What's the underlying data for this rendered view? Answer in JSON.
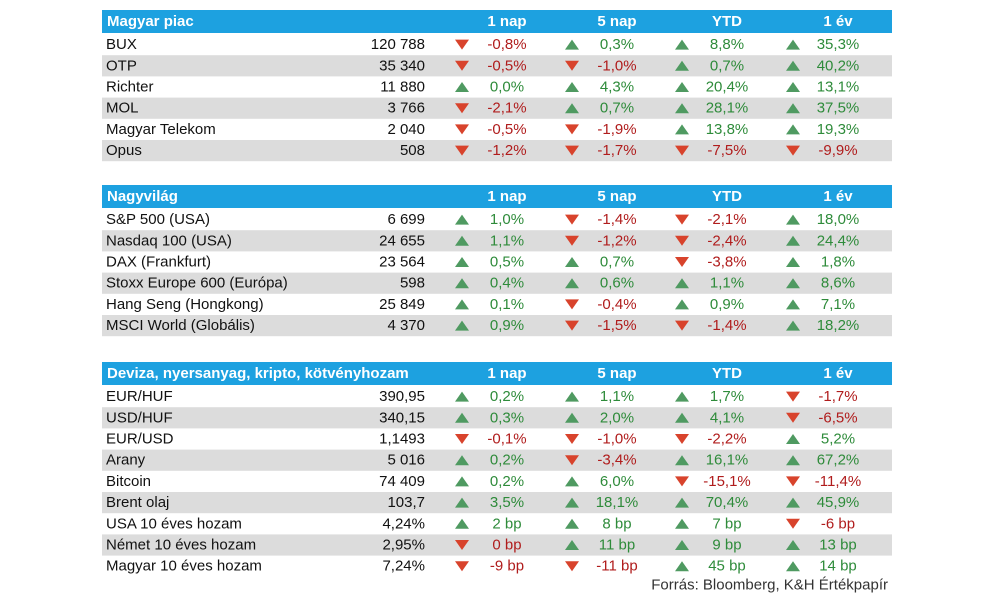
{
  "sections": [
    {
      "header": {
        "title": "Magyar piac",
        "columns": [
          "1 nap",
          "5 nap",
          "YTD",
          "1 év"
        ]
      },
      "rows": [
        {
          "name": "BUX",
          "value": "120 788",
          "cells": [
            {
              "text": "-0,8%",
              "trend": "down"
            },
            {
              "text": "0,3%",
              "trend": "up"
            },
            {
              "text": "8,8%",
              "trend": "up"
            },
            {
              "text": "35,3%",
              "trend": "up"
            }
          ]
        },
        {
          "name": "OTP",
          "value": "35 340",
          "cells": [
            {
              "text": "-0,5%",
              "trend": "down"
            },
            {
              "text": "-1,0%",
              "trend": "down"
            },
            {
              "text": "0,7%",
              "trend": "up"
            },
            {
              "text": "40,2%",
              "trend": "up"
            }
          ]
        },
        {
          "name": "Richter",
          "value": "11 880",
          "cells": [
            {
              "text": "0,0%",
              "trend": "up"
            },
            {
              "text": "4,3%",
              "trend": "up"
            },
            {
              "text": "20,4%",
              "trend": "up"
            },
            {
              "text": "13,1%",
              "trend": "up"
            }
          ]
        },
        {
          "name": "MOL",
          "value": "3 766",
          "cells": [
            {
              "text": "-2,1%",
              "trend": "down"
            },
            {
              "text": "0,7%",
              "trend": "up"
            },
            {
              "text": "28,1%",
              "trend": "up"
            },
            {
              "text": "37,5%",
              "trend": "up"
            }
          ]
        },
        {
          "name": "Magyar Telekom",
          "value": "2 040",
          "cells": [
            {
              "text": "-0,5%",
              "trend": "down"
            },
            {
              "text": "-1,9%",
              "trend": "down"
            },
            {
              "text": "13,8%",
              "trend": "up"
            },
            {
              "text": "19,3%",
              "trend": "up"
            }
          ]
        },
        {
          "name": "Opus",
          "value": "508",
          "cells": [
            {
              "text": "-1,2%",
              "trend": "down"
            },
            {
              "text": "-1,7%",
              "trend": "down"
            },
            {
              "text": "-7,5%",
              "trend": "down"
            },
            {
              "text": "-9,9%",
              "trend": "down"
            }
          ]
        }
      ]
    },
    {
      "header": {
        "title": "Nagyvilág",
        "columns": [
          "1 nap",
          "5 nap",
          "YTD",
          "1 év"
        ]
      },
      "rows": [
        {
          "name": "S&P 500 (USA)",
          "value": "6 699",
          "cells": [
            {
              "text": "1,0%",
              "trend": "up"
            },
            {
              "text": "-1,4%",
              "trend": "down"
            },
            {
              "text": "-2,1%",
              "trend": "down"
            },
            {
              "text": "18,0%",
              "trend": "up"
            }
          ]
        },
        {
          "name": "Nasdaq 100 (USA)",
          "value": "24 655",
          "cells": [
            {
              "text": "1,1%",
              "trend": "up"
            },
            {
              "text": "-1,2%",
              "trend": "down"
            },
            {
              "text": "-2,4%",
              "trend": "down"
            },
            {
              "text": "24,4%",
              "trend": "up"
            }
          ]
        },
        {
          "name": "DAX (Frankfurt)",
          "value": "23 564",
          "cells": [
            {
              "text": "0,5%",
              "trend": "up"
            },
            {
              "text": "0,7%",
              "trend": "up"
            },
            {
              "text": "-3,8%",
              "trend": "down"
            },
            {
              "text": "1,8%",
              "trend": "up"
            }
          ]
        },
        {
          "name": "Stoxx Europe 600 (Európa)",
          "value": "598",
          "cells": [
            {
              "text": "0,4%",
              "trend": "up"
            },
            {
              "text": "0,6%",
              "trend": "up"
            },
            {
              "text": "1,1%",
              "trend": "up"
            },
            {
              "text": "8,6%",
              "trend": "up"
            }
          ]
        },
        {
          "name": "Hang Seng (Hongkong)",
          "value": "25 849",
          "cells": [
            {
              "text": "0,1%",
              "trend": "up"
            },
            {
              "text": "-0,4%",
              "trend": "down"
            },
            {
              "text": "0,9%",
              "trend": "up"
            },
            {
              "text": "7,1%",
              "trend": "up"
            }
          ]
        },
        {
          "name": "MSCI World (Globális)",
          "value": "4 370",
          "cells": [
            {
              "text": "0,9%",
              "trend": "up"
            },
            {
              "text": "-1,5%",
              "trend": "down"
            },
            {
              "text": "-1,4%",
              "trend": "down"
            },
            {
              "text": "18,2%",
              "trend": "up"
            }
          ]
        }
      ]
    },
    {
      "header": {
        "title": "Deviza, nyersanyag, kripto, kötvényhozam",
        "columns": [
          "1 nap",
          "5 nap",
          "YTD",
          "1 év"
        ]
      },
      "rows": [
        {
          "name": "EUR/HUF",
          "value": "390,95",
          "cells": [
            {
              "text": "0,2%",
              "trend": "up"
            },
            {
              "text": "1,1%",
              "trend": "up"
            },
            {
              "text": "1,7%",
              "trend": "up"
            },
            {
              "text": "-1,7%",
              "trend": "down"
            }
          ]
        },
        {
          "name": "USD/HUF",
          "value": "340,15",
          "cells": [
            {
              "text": "0,3%",
              "trend": "up"
            },
            {
              "text": "2,0%",
              "trend": "up"
            },
            {
              "text": "4,1%",
              "trend": "up"
            },
            {
              "text": "-6,5%",
              "trend": "down"
            }
          ]
        },
        {
          "name": "EUR/USD",
          "value": "1,1493",
          "cells": [
            {
              "text": "-0,1%",
              "trend": "down"
            },
            {
              "text": "-1,0%",
              "trend": "down"
            },
            {
              "text": "-2,2%",
              "trend": "down"
            },
            {
              "text": "5,2%",
              "trend": "up"
            }
          ]
        },
        {
          "name": "Arany",
          "value": "5 016",
          "cells": [
            {
              "text": "0,2%",
              "trend": "up"
            },
            {
              "text": "-3,4%",
              "trend": "down"
            },
            {
              "text": "16,1%",
              "trend": "up"
            },
            {
              "text": "67,2%",
              "trend": "up"
            }
          ]
        },
        {
          "name": "Bitcoin",
          "value": "74 409",
          "cells": [
            {
              "text": "0,2%",
              "trend": "up"
            },
            {
              "text": "6,0%",
              "trend": "up"
            },
            {
              "text": "-15,1%",
              "trend": "down"
            },
            {
              "text": "-11,4%",
              "trend": "down"
            }
          ]
        },
        {
          "name": "Brent olaj",
          "value": "103,7",
          "cells": [
            {
              "text": "3,5%",
              "trend": "up"
            },
            {
              "text": "18,1%",
              "trend": "up"
            },
            {
              "text": "70,4%",
              "trend": "up"
            },
            {
              "text": "45,9%",
              "trend": "up"
            }
          ]
        },
        {
          "name": "USA 10 éves hozam",
          "value": "4,24%",
          "cells": [
            {
              "text": "2 bp",
              "trend": "up"
            },
            {
              "text": "8 bp",
              "trend": "up"
            },
            {
              "text": "7 bp",
              "trend": "up"
            },
            {
              "text": "-6 bp",
              "trend": "down"
            }
          ]
        },
        {
          "name": "Német 10 éves hozam",
          "value": "2,95%",
          "cells": [
            {
              "text": "0 bp",
              "trend": "down"
            },
            {
              "text": "11 bp",
              "trend": "up"
            },
            {
              "text": "9 bp",
              "trend": "up"
            },
            {
              "text": "13 bp",
              "trend": "up"
            }
          ]
        },
        {
          "name": "Magyar 10 éves hozam",
          "value": "7,24%",
          "cells": [
            {
              "text": "-9 bp",
              "trend": "down"
            },
            {
              "text": "-11 bp",
              "trend": "down"
            },
            {
              "text": "45 bp",
              "trend": "up"
            },
            {
              "text": "14 bp",
              "trend": "up"
            }
          ]
        }
      ]
    }
  ],
  "footer": "Forrás: Bloomberg, K&H Értékpapír"
}
